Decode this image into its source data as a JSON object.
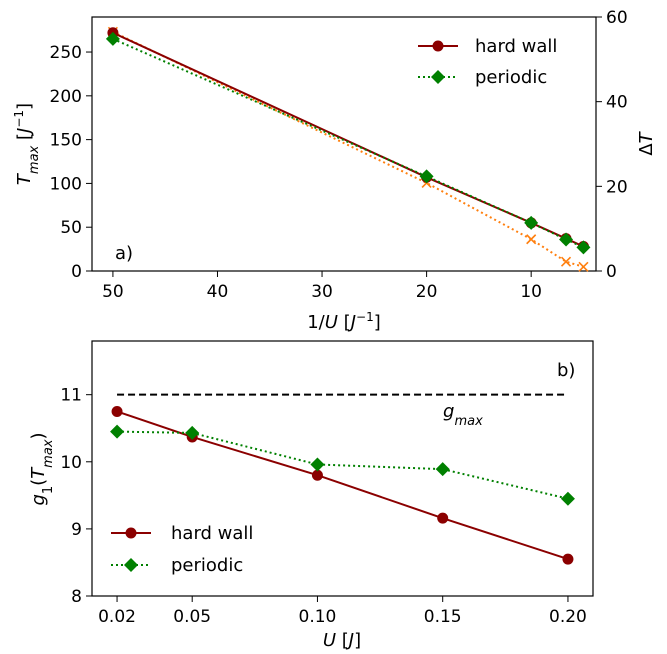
{
  "chart_data": [
    {
      "type": "line",
      "panel_label": "a)",
      "xlabel": "1/U [J⁻¹]",
      "ylabel": "T_max [J⁻¹]",
      "y2label": "ΔT",
      "x_inverted": true,
      "xlim": [
        52,
        3.8
      ],
      "ylim": [
        0,
        290
      ],
      "y2lim": [
        0,
        60
      ],
      "xticks": [
        50,
        40,
        30,
        20,
        10
      ],
      "yticks": [
        0,
        50,
        100,
        150,
        200,
        250
      ],
      "y2ticks": [
        0,
        20,
        40,
        60
      ],
      "legend_position": "top-right",
      "series": [
        {
          "name": "hard wall",
          "axis": "left",
          "color": "#8b0000",
          "marker": "circle",
          "line": "solid",
          "x": [
            50,
            20,
            10,
            6.667,
            5
          ],
          "y": [
            272,
            107,
            55,
            37,
            28
          ]
        },
        {
          "name": "periodic",
          "axis": "left",
          "color": "#008000",
          "marker": "diamond",
          "line": "dotted",
          "x": [
            50,
            20,
            10,
            6.667,
            5
          ],
          "y": [
            265,
            108,
            55,
            36,
            27
          ]
        },
        {
          "axis": "right",
          "color": "#ff7f0e",
          "marker": "x",
          "line": "dotted",
          "x": [
            50,
            20,
            10,
            6.667,
            5
          ],
          "y": [
            56.5,
            20.8,
            7.5,
            2.2,
            1.0
          ]
        }
      ]
    },
    {
      "type": "line",
      "panel_label": "b)",
      "xlabel": "U [J]",
      "ylabel": "g₁(T_max)",
      "xlim": [
        0.01,
        0.21
      ],
      "ylim": [
        8,
        11.8
      ],
      "xticks": [
        0.02,
        0.05,
        0.1,
        0.15,
        0.2
      ],
      "xtick_labels": [
        "0.02",
        "0.05",
        "0.10",
        "0.15",
        "0.20"
      ],
      "yticks": [
        8,
        9,
        10,
        11
      ],
      "legend_position": "bottom-left",
      "hline": {
        "y": 11.0,
        "x": [
          0.02,
          0.2
        ],
        "label": "g_max",
        "style": "dashed",
        "color": "#000000"
      },
      "series": [
        {
          "name": "hard wall",
          "color": "#8b0000",
          "marker": "circle",
          "line": "solid",
          "x": [
            0.02,
            0.05,
            0.1,
            0.15,
            0.2
          ],
          "y": [
            10.75,
            10.37,
            9.8,
            9.16,
            8.55
          ]
        },
        {
          "name": "periodic",
          "color": "#008000",
          "marker": "diamond",
          "line": "dotted",
          "x": [
            0.02,
            0.05,
            0.1,
            0.15,
            0.2
          ],
          "y": [
            10.45,
            10.43,
            9.96,
            9.89,
            9.45
          ]
        }
      ]
    }
  ]
}
